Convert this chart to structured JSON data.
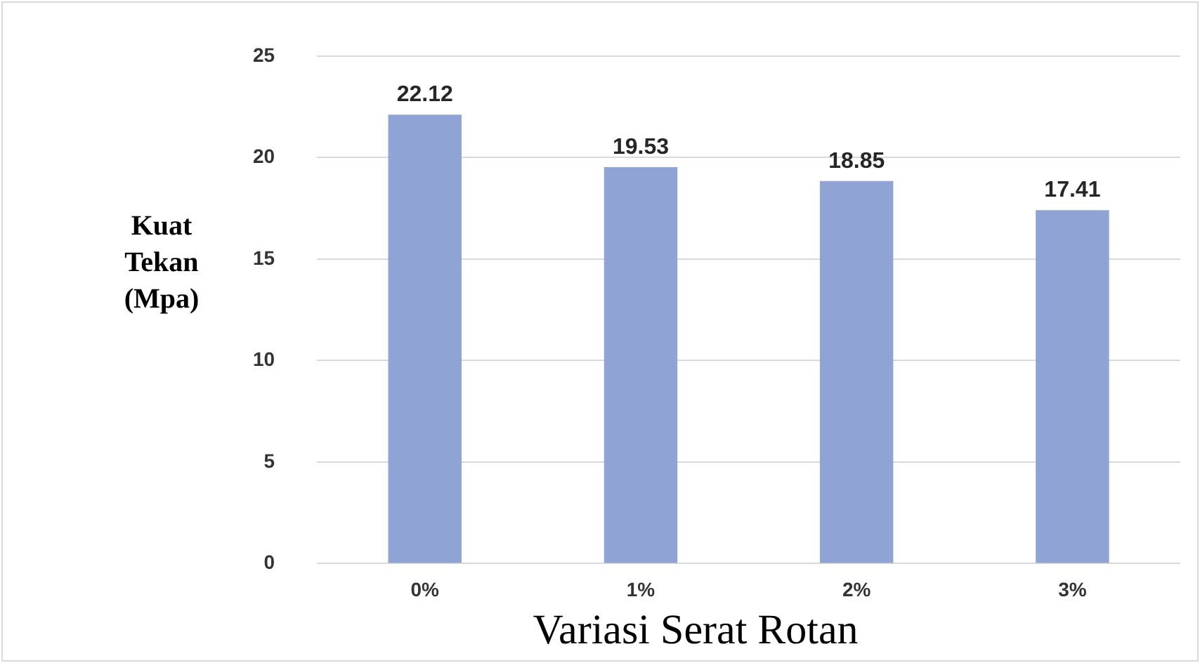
{
  "chart_data": {
    "type": "bar",
    "xlabel": "Variasi Serat Rotan",
    "ylabel": "Kuat Tekan (Mpa)",
    "categories": [
      "0%",
      "1%",
      "2%",
      "3%"
    ],
    "values": [
      22.12,
      19.53,
      18.85,
      17.41
    ],
    "color": "#8fa3d5",
    "ylim": [
      0,
      25
    ],
    "yticks": [
      0,
      5,
      10,
      15,
      20,
      25
    ],
    "grid": "y",
    "data_labels": true
  }
}
